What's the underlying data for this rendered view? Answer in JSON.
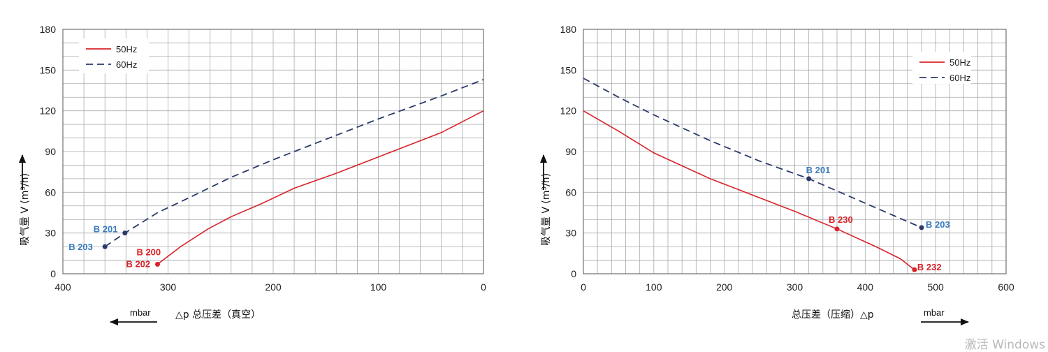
{
  "chart_data": [
    {
      "type": "line",
      "xlim": [
        400,
        0
      ],
      "ylim": [
        0,
        180
      ],
      "x_ticks": [
        400,
        300,
        200,
        100,
        0
      ],
      "y_ticks": [
        0,
        30,
        60,
        90,
        120,
        150,
        180
      ],
      "grid": true,
      "x_reversed": true,
      "xlabel": "总压差（真空）",
      "xlabel_prefix": "△p",
      "x_unit": "mbar",
      "ylabel": "吸气量 V (m³/h)",
      "legend_position": "top-left",
      "series": [
        {
          "name": "50Hz",
          "color": "#d8232a",
          "dash": "solid",
          "points": [
            [
              310,
              7
            ],
            [
              288,
              20
            ],
            [
              262,
              33
            ],
            [
              240,
              42
            ],
            [
              210,
              52
            ],
            [
              180,
              63
            ],
            [
              140,
              74
            ],
            [
              100,
              86
            ],
            [
              40,
              104
            ],
            [
              0,
              120
            ]
          ]
        },
        {
          "name": "60Hz",
          "color": "#2b3a6b",
          "dash": "dashed",
          "points": [
            [
              360,
              20
            ],
            [
              341,
              30
            ],
            [
              310,
              45
            ],
            [
              280,
              56
            ],
            [
              240,
              71
            ],
            [
              200,
              84
            ],
            [
              180,
              90
            ],
            [
              140,
              102
            ],
            [
              100,
              114
            ],
            [
              40,
              131
            ],
            [
              0,
              143
            ]
          ]
        }
      ],
      "annotations": [
        {
          "text": "B 201",
          "x": 341,
          "y": 30,
          "color": "#3a7bbf",
          "marker": "#2b3a6b"
        },
        {
          "text": "B 203",
          "x": 360,
          "y": 20,
          "color": "#3a7bbf",
          "marker": "#2b3a6b"
        },
        {
          "text": "B 200",
          "x": 310,
          "y": 7,
          "color": "#d8232a",
          "marker": null
        },
        {
          "text": "B 202",
          "x": 310,
          "y": 7,
          "color": "#d8232a",
          "marker": "#d8232a"
        }
      ]
    },
    {
      "type": "line",
      "xlim": [
        0,
        600
      ],
      "ylim": [
        0,
        180
      ],
      "x_ticks": [
        0,
        100,
        200,
        300,
        400,
        500,
        600
      ],
      "y_ticks": [
        0,
        30,
        60,
        90,
        120,
        150,
        180
      ],
      "grid": true,
      "x_reversed": false,
      "xlabel": "总压差（压缩）",
      "xlabel_suffix": "△p",
      "x_unit": "mbar",
      "ylabel": "吸气量 V (m³/h)",
      "legend_position": "top-right",
      "series": [
        {
          "name": "50Hz",
          "color": "#d8232a",
          "dash": "solid",
          "points": [
            [
              0,
              120
            ],
            [
              50,
              105
            ],
            [
              100,
              89
            ],
            [
              180,
              70
            ],
            [
              250,
              56
            ],
            [
              300,
              46
            ],
            [
              360,
              33
            ],
            [
              415,
              20
            ],
            [
              450,
              11
            ],
            [
              470,
              3
            ]
          ]
        },
        {
          "name": "60Hz",
          "color": "#2b3a6b",
          "dash": "dashed",
          "points": [
            [
              0,
              144
            ],
            [
              50,
              130
            ],
            [
              100,
              117
            ],
            [
              180,
              98
            ],
            [
              250,
              83
            ],
            [
              320,
              70
            ],
            [
              400,
              52
            ],
            [
              480,
              34
            ]
          ]
        }
      ],
      "annotations": [
        {
          "text": "B 201",
          "x": 320,
          "y": 70,
          "color": "#3a7bbf",
          "marker": "#2b3a6b"
        },
        {
          "text": "B 203",
          "x": 480,
          "y": 34,
          "color": "#3a7bbf",
          "marker": "#2b3a6b"
        },
        {
          "text": "B 230",
          "x": 360,
          "y": 33,
          "color": "#d8232a",
          "marker": "#d8232a"
        },
        {
          "text": "B 232",
          "x": 470,
          "y": 3,
          "color": "#d8232a",
          "marker": "#d8232a"
        }
      ]
    }
  ],
  "watermark": "激活 Windows"
}
